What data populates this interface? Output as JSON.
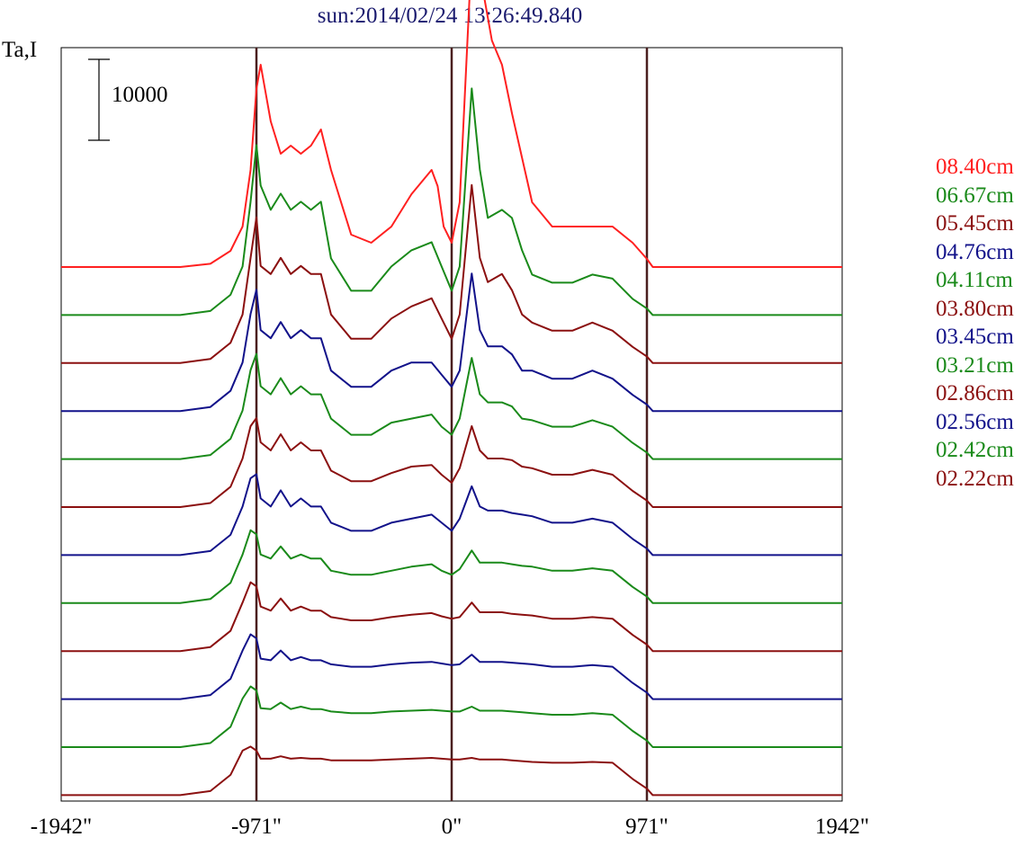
{
  "chart_data": {
    "type": "line",
    "title": "sun:2014/02/24 13:26:49.840",
    "ylabel": "Ta,I",
    "scale_bar_label": "10000",
    "scale_bar_value": 10000,
    "xlabel": "",
    "x_ticks": [
      "-1942\"",
      "-971\"",
      "0\"",
      "971\"",
      "1942\""
    ],
    "x_tick_values": [
      -1942,
      -971,
      0,
      971,
      1942
    ],
    "xlim": [
      -1942,
      1942
    ],
    "vertical_lines": [
      -971,
      0,
      971
    ],
    "series": [
      {
        "name": "08.40cm",
        "color": "#ff2020"
      },
      {
        "name": "06.67cm",
        "color": "#1a8a1a"
      },
      {
        "name": "05.45cm",
        "color": "#8b1010"
      },
      {
        "name": "04.76cm",
        "color": "#12128a"
      },
      {
        "name": "04.11cm",
        "color": "#1a8a1a"
      },
      {
        "name": "03.80cm",
        "color": "#8b1010"
      },
      {
        "name": "03.45cm",
        "color": "#12128a"
      },
      {
        "name": "03.21cm",
        "color": "#1a8a1a"
      },
      {
        "name": "02.86cm",
        "color": "#8b1010"
      },
      {
        "name": "02.56cm",
        "color": "#12128a"
      },
      {
        "name": "02.42cm",
        "color": "#1a8a1a"
      },
      {
        "name": "02.22cm",
        "color": "#8b1010"
      }
    ],
    "profiles": [
      {
        "x": [
          -1942,
          -1350,
          -1200,
          -1100,
          -1040,
          -1000,
          -971,
          -950,
          -900,
          -850,
          -800,
          -750,
          -700,
          -650,
          -600,
          -500,
          -400,
          -300,
          -200,
          -100,
          -70,
          -40,
          0,
          40,
          100,
          150,
          200,
          250,
          300,
          400,
          500,
          600,
          700,
          800,
          900,
          971,
          1000,
          1050,
          1100,
          1200,
          1300,
          1942
        ],
        "y": [
          0,
          0,
          400,
          2000,
          5000,
          12000,
          22000,
          25000,
          18000,
          14000,
          15000,
          14000,
          15000,
          17000,
          12000,
          4000,
          3000,
          5000,
          9000,
          12000,
          10000,
          5000,
          3000,
          8000,
          39000,
          35000,
          28000,
          25000,
          19000,
          8000,
          5000,
          5000,
          5000,
          5000,
          3000,
          1000,
          0,
          0,
          0,
          0,
          0,
          0
        ]
      },
      {
        "x": [
          -1942,
          -1350,
          -1200,
          -1100,
          -1040,
          -1000,
          -971,
          -950,
          -900,
          -850,
          -800,
          -750,
          -700,
          -650,
          -600,
          -500,
          -400,
          -300,
          -200,
          -100,
          -50,
          0,
          40,
          100,
          140,
          180,
          250,
          300,
          350,
          400,
          500,
          600,
          700,
          800,
          900,
          971,
          1000,
          1050,
          1100,
          1300,
          1942
        ],
        "y": [
          0,
          0,
          500,
          2500,
          6000,
          14000,
          21000,
          16000,
          13000,
          15000,
          13000,
          14000,
          13000,
          14000,
          7000,
          3000,
          3000,
          6000,
          8000,
          9000,
          6000,
          3000,
          6000,
          28000,
          18000,
          12000,
          13000,
          12000,
          8000,
          5000,
          4000,
          4000,
          5000,
          4500,
          2000,
          800,
          0,
          0,
          0,
          0,
          0
        ]
      },
      {
        "x": [
          -1942,
          -1350,
          -1200,
          -1100,
          -1040,
          -1000,
          -971,
          -950,
          -900,
          -850,
          -800,
          -750,
          -700,
          -650,
          -600,
          -500,
          -400,
          -300,
          -200,
          -100,
          -50,
          0,
          40,
          100,
          140,
          180,
          250,
          300,
          350,
          400,
          500,
          600,
          700,
          800,
          900,
          971,
          1000,
          1050,
          1100,
          1300,
          1942
        ],
        "y": [
          0,
          0,
          500,
          2500,
          6000,
          13000,
          18000,
          12000,
          11000,
          13000,
          11000,
          12000,
          11000,
          11000,
          6000,
          3000,
          3000,
          5500,
          7000,
          8000,
          5500,
          3000,
          6000,
          22000,
          13000,
          10000,
          11000,
          9000,
          6000,
          5000,
          4000,
          4000,
          5000,
          4000,
          2000,
          800,
          0,
          0,
          0,
          0,
          0
        ]
      },
      {
        "x": [
          -1942,
          -1350,
          -1200,
          -1100,
          -1040,
          -1000,
          -971,
          -950,
          -900,
          -850,
          -800,
          -750,
          -700,
          -650,
          -600,
          -500,
          -400,
          -300,
          -200,
          -100,
          -50,
          0,
          40,
          100,
          140,
          180,
          250,
          300,
          350,
          400,
          500,
          600,
          700,
          800,
          900,
          971,
          1000,
          1050,
          1100,
          1300,
          1942
        ],
        "y": [
          0,
          0,
          500,
          2500,
          6000,
          12000,
          15000,
          10000,
          9000,
          11000,
          9000,
          10000,
          9000,
          9000,
          5000,
          3000,
          3000,
          5000,
          6000,
          6000,
          4500,
          3000,
          5000,
          17000,
          10000,
          8000,
          8000,
          7000,
          5000,
          5000,
          4000,
          4000,
          5000,
          4000,
          2000,
          800,
          0,
          0,
          0,
          0,
          0
        ]
      },
      {
        "x": [
          -1942,
          -1350,
          -1200,
          -1100,
          -1040,
          -1000,
          -971,
          -950,
          -900,
          -850,
          -800,
          -750,
          -700,
          -650,
          -600,
          -500,
          -400,
          -300,
          -200,
          -100,
          -50,
          0,
          40,
          100,
          140,
          180,
          250,
          300,
          350,
          400,
          500,
          600,
          700,
          800,
          900,
          971,
          1000,
          1050,
          1100,
          1300,
          1942
        ],
        "y": [
          0,
          0,
          500,
          2500,
          6000,
          11000,
          13000,
          9000,
          8000,
          10000,
          8000,
          9000,
          8000,
          8000,
          5000,
          3000,
          3000,
          4500,
          5000,
          5500,
          4000,
          3000,
          5000,
          12500,
          8000,
          7000,
          7000,
          6500,
          5000,
          4800,
          4000,
          4000,
          4800,
          4000,
          2000,
          800,
          0,
          0,
          0,
          0,
          0
        ]
      },
      {
        "x": [
          -1942,
          -1350,
          -1200,
          -1100,
          -1040,
          -1000,
          -971,
          -950,
          -900,
          -850,
          -800,
          -750,
          -700,
          -650,
          -600,
          -500,
          -400,
          -300,
          -200,
          -100,
          -50,
          0,
          40,
          100,
          140,
          180,
          250,
          300,
          350,
          400,
          500,
          600,
          700,
          800,
          900,
          971,
          1000,
          1050,
          1100,
          1300,
          1942
        ],
        "y": [
          0,
          0,
          500,
          2500,
          6000,
          10000,
          11000,
          8000,
          7000,
          9000,
          7000,
          8000,
          7000,
          7000,
          4500,
          3200,
          3200,
          4200,
          5000,
          5200,
          4000,
          3000,
          4800,
          10000,
          7000,
          6000,
          6000,
          5800,
          5000,
          4800,
          4000,
          4000,
          4600,
          4000,
          2000,
          800,
          0,
          0,
          0,
          0,
          0
        ]
      },
      {
        "x": [
          -1942,
          -1350,
          -1200,
          -1100,
          -1040,
          -1000,
          -971,
          -950,
          -900,
          -850,
          -800,
          -750,
          -700,
          -650,
          -600,
          -500,
          -400,
          -300,
          -200,
          -100,
          -50,
          0,
          40,
          100,
          140,
          180,
          250,
          300,
          350,
          400,
          500,
          600,
          700,
          800,
          900,
          971,
          1000,
          1050,
          1100,
          1300,
          1942
        ],
        "y": [
          0,
          0,
          500,
          2500,
          6000,
          9500,
          10000,
          7000,
          6000,
          8000,
          6000,
          7000,
          6000,
          6000,
          4000,
          3000,
          3000,
          4000,
          4500,
          5000,
          4000,
          3000,
          4500,
          8500,
          6000,
          5500,
          5500,
          5200,
          5000,
          4800,
          4000,
          4000,
          4500,
          4000,
          2000,
          800,
          0,
          0,
          0,
          0,
          0
        ]
      },
      {
        "x": [
          -1942,
          -1350,
          -1200,
          -1100,
          -1040,
          -1000,
          -971,
          -950,
          -900,
          -850,
          -800,
          -750,
          -700,
          -650,
          -600,
          -500,
          -400,
          -300,
          -200,
          -100,
          -50,
          0,
          40,
          100,
          140,
          180,
          250,
          300,
          350,
          400,
          500,
          600,
          700,
          800,
          900,
          971,
          1000,
          1050,
          1100,
          1300,
          1942
        ],
        "y": [
          0,
          0,
          500,
          2500,
          6000,
          9000,
          8500,
          6000,
          5500,
          7000,
          5500,
          6000,
          5500,
          5500,
          4000,
          3500,
          3500,
          4000,
          4500,
          4800,
          4000,
          3500,
          4200,
          6500,
          5000,
          5000,
          5000,
          4800,
          4600,
          4500,
          4000,
          4000,
          4300,
          4000,
          2000,
          800,
          0,
          0,
          0,
          0,
          0
        ]
      },
      {
        "x": [
          -1942,
          -1350,
          -1200,
          -1100,
          -1040,
          -1000,
          -971,
          -950,
          -900,
          -850,
          -800,
          -750,
          -700,
          -650,
          -600,
          -500,
          -400,
          -300,
          -200,
          -100,
          -50,
          0,
          40,
          100,
          140,
          180,
          250,
          300,
          350,
          400,
          500,
          600,
          700,
          800,
          900,
          971,
          1000,
          1050,
          1100,
          1300,
          1942
        ],
        "y": [
          0,
          0,
          500,
          2500,
          6000,
          8500,
          8000,
          5500,
          5000,
          6500,
          5000,
          5500,
          5000,
          5000,
          4200,
          3800,
          3800,
          4200,
          4500,
          4700,
          4300,
          4000,
          4200,
          6000,
          4800,
          4800,
          4800,
          4600,
          4500,
          4400,
          4000,
          4000,
          4200,
          4000,
          2000,
          800,
          0,
          0,
          0,
          0,
          0
        ]
      },
      {
        "x": [
          -1942,
          -1350,
          -1200,
          -1100,
          -1040,
          -1000,
          -971,
          -950,
          -900,
          -850,
          -800,
          -750,
          -700,
          -650,
          -600,
          -500,
          -400,
          -300,
          -200,
          -100,
          -50,
          0,
          40,
          100,
          140,
          180,
          250,
          300,
          350,
          400,
          500,
          600,
          700,
          800,
          900,
          971,
          1000,
          1050,
          1100,
          1300,
          1942
        ],
        "y": [
          0,
          0,
          500,
          2500,
          6000,
          8000,
          7500,
          5000,
          4800,
          6000,
          4800,
          5200,
          4800,
          4800,
          4300,
          4000,
          4000,
          4300,
          4500,
          4600,
          4400,
          4200,
          4300,
          5500,
          4600,
          4600,
          4600,
          4500,
          4400,
          4300,
          4000,
          4000,
          4200,
          4000,
          2000,
          800,
          0,
          0,
          0,
          0,
          0
        ]
      },
      {
        "x": [
          -1942,
          -1350,
          -1200,
          -1100,
          -1040,
          -1000,
          -971,
          -950,
          -900,
          -850,
          -800,
          -750,
          -700,
          -650,
          -600,
          -500,
          -400,
          -300,
          -200,
          -100,
          -50,
          0,
          40,
          100,
          140,
          180,
          250,
          300,
          350,
          400,
          500,
          600,
          700,
          800,
          900,
          971,
          1000,
          1050,
          1100,
          1300,
          1942
        ],
        "y": [
          0,
          0,
          500,
          2500,
          6000,
          7500,
          7000,
          4800,
          4700,
          5500,
          4700,
          5000,
          4700,
          4700,
          4400,
          4200,
          4200,
          4400,
          4500,
          4600,
          4500,
          4400,
          4400,
          5000,
          4500,
          4500,
          4500,
          4400,
          4300,
          4200,
          4000,
          4000,
          4200,
          4000,
          2000,
          800,
          0,
          0,
          0,
          0,
          0
        ]
      },
      {
        "x": [
          -1942,
          -1350,
          -1200,
          -1100,
          -1040,
          -1000,
          -971,
          -950,
          -900,
          -850,
          -800,
          -750,
          -700,
          -650,
          -600,
          -500,
          -400,
          -300,
          -200,
          -100,
          -50,
          0,
          40,
          100,
          140,
          180,
          250,
          300,
          350,
          400,
          500,
          600,
          700,
          800,
          900,
          971,
          1000,
          1050,
          1100,
          1300,
          1942
        ],
        "y": [
          0,
          0,
          500,
          2500,
          5500,
          6000,
          5500,
          4500,
          4500,
          4800,
          4500,
          4600,
          4500,
          4500,
          4300,
          4300,
          4300,
          4400,
          4500,
          4600,
          4500,
          4400,
          4400,
          4600,
          4400,
          4400,
          4400,
          4300,
          4200,
          4100,
          4000,
          4000,
          4100,
          4000,
          2000,
          800,
          0,
          0,
          0,
          0,
          0
        ]
      }
    ]
  }
}
